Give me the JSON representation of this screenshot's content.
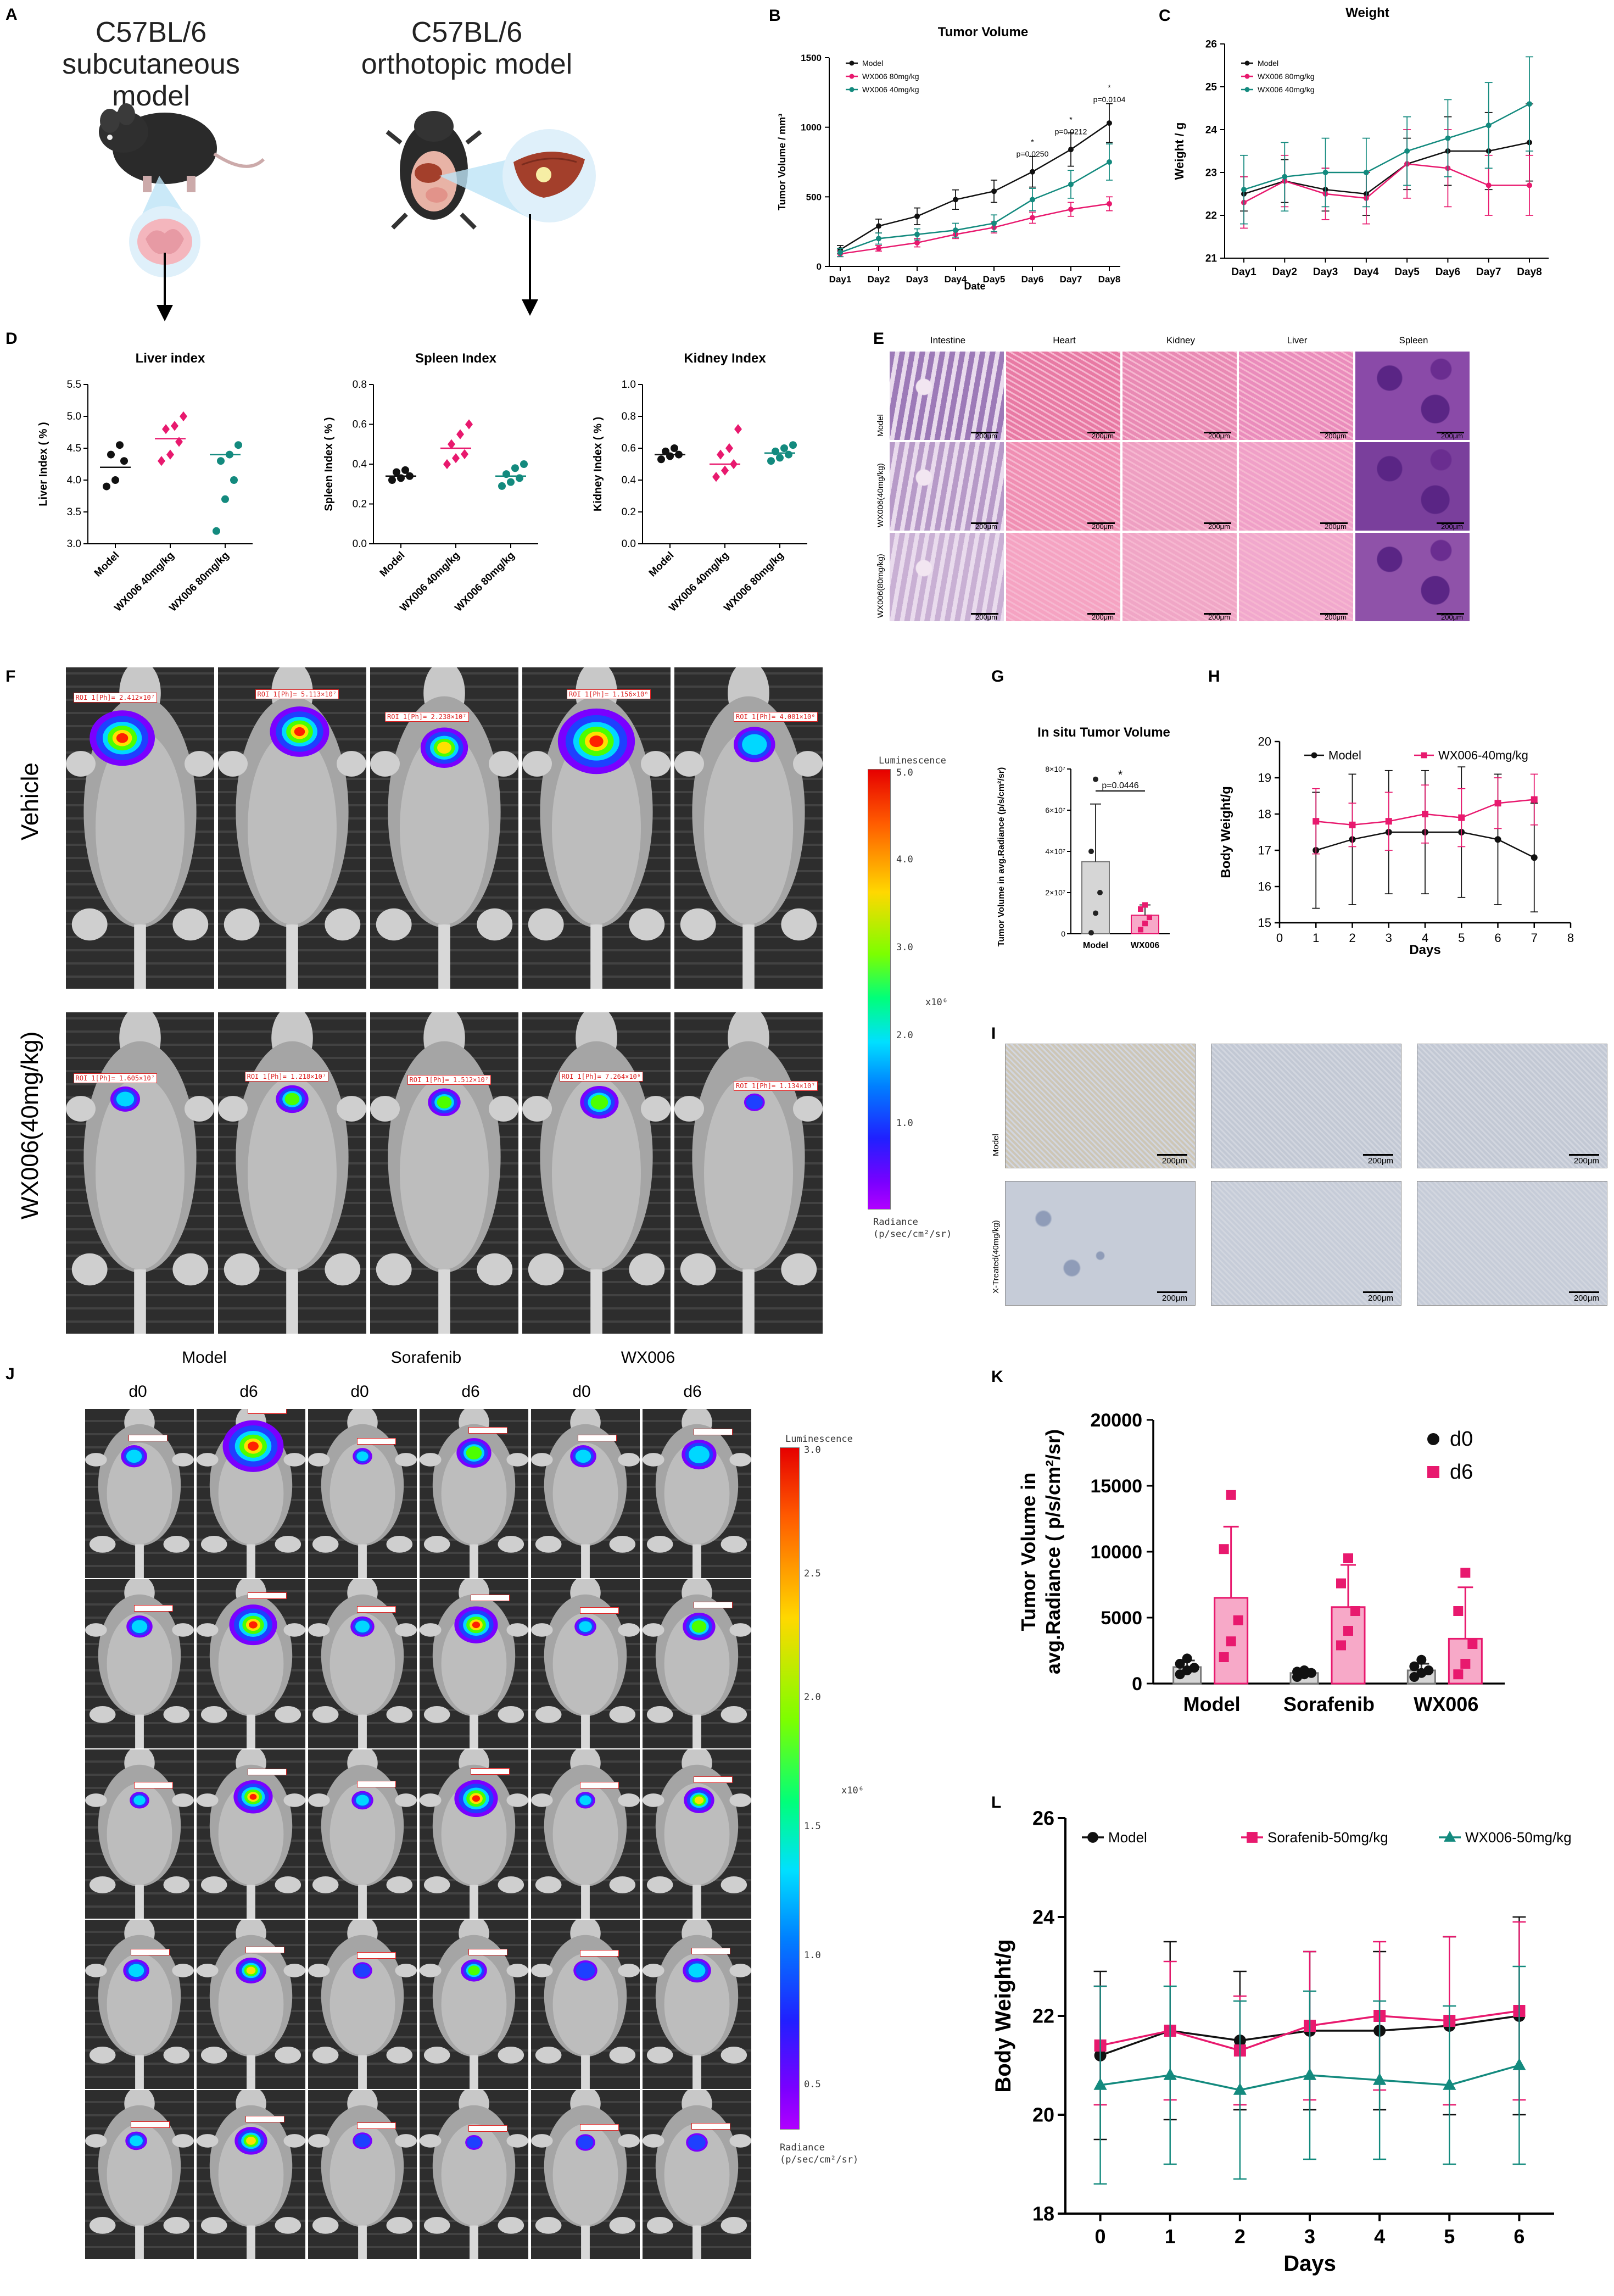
{
  "panels": {
    "A": "A",
    "B": "B",
    "C": "C",
    "D": "D",
    "E": "E",
    "F": "F",
    "G": "G",
    "H": "H",
    "I": "I",
    "J": "J",
    "K": "K",
    "L": "L"
  },
  "panel_a": {
    "left_title_1": "C57BL/6",
    "left_title_2": "subcutaneous model",
    "right_title_1": "C57BL/6",
    "right_title_2": "orthotopic model"
  },
  "colors": {
    "model": "#111111",
    "wx80": "#e8196e",
    "wx40": "#138a7e",
    "pink": "#e8196e",
    "teal": "#138a7e"
  },
  "chart_data": [
    {
      "id": "B",
      "type": "line",
      "title": "Tumor Volume",
      "xlabel": "Date",
      "ylabel": "Tumor Volume / mm³",
      "categories": [
        "Day1",
        "Day2",
        "Day3",
        "Day4",
        "Day5",
        "Day6",
        "Day7",
        "Day8"
      ],
      "ylim": [
        0,
        1500
      ],
      "yticks": [
        0,
        500,
        1000,
        1500
      ],
      "series": [
        {
          "name": "Model",
          "values": [
            120,
            290,
            360,
            480,
            540,
            680,
            840,
            1030
          ],
          "err": [
            30,
            50,
            60,
            70,
            80,
            110,
            120,
            140
          ]
        },
        {
          "name": "WX006 80mg/kg",
          "values": [
            90,
            130,
            170,
            230,
            280,
            350,
            410,
            450
          ],
          "err": [
            20,
            20,
            30,
            30,
            40,
            40,
            50,
            50
          ]
        },
        {
          "name": "WX006 40mg/kg",
          "values": [
            100,
            200,
            230,
            260,
            310,
            480,
            590,
            750
          ],
          "err": [
            30,
            40,
            40,
            50,
            60,
            80,
            100,
            130
          ]
        }
      ],
      "annotations": [
        "p=0.0250",
        "p=0.0212",
        "p=0.0104",
        "*",
        "*",
        "*"
      ]
    },
    {
      "id": "C",
      "type": "line",
      "title": "Weight",
      "xlabel": "",
      "ylabel": "Weight / g",
      "categories": [
        "Day1",
        "Day2",
        "Day3",
        "Day4",
        "Day5",
        "Day6",
        "Day7",
        "Day8"
      ],
      "ylim": [
        21,
        26
      ],
      "yticks": [
        21,
        22,
        23,
        24,
        25,
        26
      ],
      "series": [
        {
          "name": "Model",
          "values": [
            22.5,
            22.8,
            22.6,
            22.5,
            23.2,
            23.5,
            23.5,
            23.7
          ],
          "err": [
            0.4,
            0.5,
            0.5,
            0.5,
            0.6,
            0.8,
            0.9,
            0.9
          ]
        },
        {
          "name": "WX006 80mg/kg",
          "values": [
            22.3,
            22.8,
            22.5,
            22.4,
            23.2,
            23.1,
            22.7,
            22.7
          ],
          "err": [
            0.6,
            0.6,
            0.6,
            0.6,
            0.8,
            0.9,
            0.7,
            0.7
          ]
        },
        {
          "name": "WX006 40mg/kg",
          "values": [
            22.6,
            22.9,
            23.0,
            23.0,
            23.5,
            23.8,
            24.1,
            24.6
          ],
          "err": [
            0.8,
            0.8,
            0.8,
            0.8,
            0.8,
            0.9,
            1.0,
            1.1
          ]
        }
      ]
    },
    {
      "id": "D1",
      "type": "scatter",
      "title": "Liver index",
      "ylabel": "Liver Index ( % )",
      "categories": [
        "Model",
        "WX006 40mg/kg",
        "WX006 80mg/kg"
      ],
      "ylim": [
        3.0,
        5.5
      ],
      "yticks": [
        3.0,
        3.5,
        4.0,
        4.5,
        5.0,
        5.5
      ],
      "points": [
        [
          3.9,
          4.0,
          4.3,
          4.4,
          4.55
        ],
        [
          4.3,
          4.4,
          4.6,
          4.8,
          4.85,
          5.0
        ],
        [
          3.2,
          3.7,
          4.0,
          4.3,
          4.4,
          4.55
        ]
      ],
      "means": [
        4.2,
        4.65,
        4.4
      ]
    },
    {
      "id": "D2",
      "type": "scatter",
      "title": "Spleen Index",
      "ylabel": "Spleen Index ( % )",
      "categories": [
        "Model",
        "WX006 40mg/kg",
        "WX006 80mg/kg"
      ],
      "ylim": [
        0.0,
        0.8
      ],
      "yticks": [
        0.0,
        0.2,
        0.4,
        0.6,
        0.8
      ],
      "points": [
        [
          0.32,
          0.33,
          0.34,
          0.36,
          0.37
        ],
        [
          0.4,
          0.43,
          0.45,
          0.5,
          0.55,
          0.6
        ],
        [
          0.29,
          0.31,
          0.33,
          0.35,
          0.38,
          0.4
        ]
      ],
      "means": [
        0.34,
        0.48,
        0.34
      ]
    },
    {
      "id": "D3",
      "type": "scatter",
      "title": "Kidney Index",
      "ylabel": "Kidney Index ( % )",
      "categories": [
        "Model",
        "WX006 40mg/kg",
        "WX006 80mg/kg"
      ],
      "ylim": [
        0.0,
        1.0
      ],
      "yticks": [
        0.0,
        0.2,
        0.4,
        0.6,
        0.8,
        1.0
      ],
      "points": [
        [
          0.53,
          0.55,
          0.56,
          0.58,
          0.6
        ],
        [
          0.42,
          0.46,
          0.5,
          0.56,
          0.6,
          0.72
        ],
        [
          0.52,
          0.54,
          0.56,
          0.58,
          0.6,
          0.62
        ]
      ],
      "means": [
        0.56,
        0.5,
        0.57
      ]
    },
    {
      "id": "G",
      "type": "bar",
      "title": "In situ Tumor Volume",
      "ylabel": "Tumor Volume in avg.Radiance (p/s/cm²/sr)",
      "categories": [
        "Model",
        "WX006"
      ],
      "values": [
        35000000.0,
        9000000.0
      ],
      "err": [
        28000000.0,
        5000000.0
      ],
      "ylim": [
        0,
        80000000.0
      ],
      "yticks": [
        "0",
        "2×10⁷",
        "4×10⁷",
        "6×10⁷",
        "8×10⁷"
      ],
      "points": [
        [
          500000.0,
          10000000.0,
          20000000.0,
          40000000.0,
          75000000.0
        ],
        [
          2000000.0,
          5000000.0,
          8000000.0,
          12000000.0,
          14000000.0
        ]
      ],
      "annotation_star": "*",
      "annotation_p": "p=0.0446"
    },
    {
      "id": "H",
      "type": "line",
      "title": "",
      "xlabel": "Days",
      "ylabel": "Body Weight/g",
      "x": [
        1,
        2,
        3,
        4,
        5,
        6,
        7
      ],
      "xlim": [
        0,
        8
      ],
      "ylim": [
        15,
        20
      ],
      "xticks": [
        0,
        1,
        2,
        3,
        4,
        5,
        6,
        7,
        8
      ],
      "yticks": [
        15,
        16,
        17,
        18,
        19,
        20
      ],
      "series": [
        {
          "name": "Model",
          "values": [
            17.0,
            17.3,
            17.5,
            17.5,
            17.5,
            17.3,
            16.8
          ],
          "err": [
            1.6,
            1.8,
            1.7,
            1.7,
            1.8,
            1.8,
            1.5
          ]
        },
        {
          "name": "WX006-40mg/kg",
          "values": [
            17.8,
            17.7,
            17.8,
            18.0,
            17.9,
            18.3,
            18.4
          ],
          "err": [
            0.9,
            0.6,
            0.8,
            0.8,
            0.8,
            0.7,
            0.7
          ]
        }
      ]
    },
    {
      "id": "K",
      "type": "bar",
      "ylabel_1": "Tumor Volume in",
      "ylabel_2": "avg.Radiance (  p/s/cm²/sr)",
      "categories": [
        "Model",
        "Sorafenib",
        "WX006"
      ],
      "ylim": [
        0,
        20000
      ],
      "yticks": [
        0,
        5000,
        10000,
        15000,
        20000
      ],
      "series": [
        {
          "name": "d0",
          "values": [
            1250,
            800,
            1000
          ],
          "err": [
            500,
            300,
            500
          ],
          "points": [
            [
              700,
              1000,
              1200,
              1500,
              1900
            ],
            [
              500,
              700,
              800,
              900,
              1000
            ],
            [
              500,
              800,
              1000,
              1300,
              1800
            ]
          ]
        },
        {
          "name": "d6",
          "values": [
            6500,
            5800,
            3400
          ],
          "err": [
            5400,
            3200,
            3900
          ],
          "points": [
            [
              2000,
              3200,
              4800,
              10200,
              14300
            ],
            [
              2900,
              4000,
              5500,
              7600,
              9500
            ],
            [
              700,
              1500,
              3000,
              5500,
              8400
            ]
          ]
        }
      ]
    },
    {
      "id": "L",
      "type": "line",
      "xlabel": "Days",
      "ylabel": "Body Weight/g",
      "x": [
        0,
        1,
        2,
        3,
        4,
        5,
        6
      ],
      "xlim": [
        -0.5,
        6.5
      ],
      "ylim": [
        18,
        26
      ],
      "xticks": [
        0,
        1,
        2,
        3,
        4,
        5,
        6
      ],
      "yticks": [
        18,
        20,
        22,
        24,
        26
      ],
      "series": [
        {
          "name": "Model",
          "values": [
            21.2,
            21.7,
            21.5,
            21.7,
            21.7,
            21.8,
            22.0
          ],
          "err": [
            1.7,
            1.8,
            1.4,
            1.6,
            1.6,
            1.8,
            2.0
          ]
        },
        {
          "name": "Sorafenib-50mg/kg",
          "values": [
            21.4,
            21.7,
            21.3,
            21.8,
            22.0,
            21.9,
            22.1
          ],
          "err": [
            1.2,
            1.4,
            1.1,
            1.5,
            1.5,
            1.7,
            1.8
          ]
        },
        {
          "name": "WX006-50mg/kg",
          "values": [
            20.6,
            20.8,
            20.5,
            20.8,
            20.7,
            20.6,
            21.0
          ],
          "err": [
            2.0,
            1.8,
            1.8,
            1.7,
            1.6,
            1.6,
            2.0
          ]
        }
      ]
    }
  ],
  "panel_e": {
    "cols": [
      "Intestine",
      "Heart",
      "Kidney",
      "Liver",
      "Spleen"
    ],
    "rows": [
      "Model",
      "WX006(40mg/kg)",
      "WX006(80mg/kg)"
    ],
    "scale": "200μm"
  },
  "panel_f": {
    "rows": [
      "Vehicle",
      "WX006(40mg/kg)"
    ],
    "roi": [
      [
        "ROI 1[Ph]= 2.412×10⁷",
        "ROI 1[Ph]= 5.113×10⁷",
        "ROI 1[Ph]= 2.238×10⁷",
        "ROI 1[Ph]= 1.156×10⁸",
        "ROI 1[Ph]= 4.081×10⁶"
      ],
      [
        "ROI 1[Ph]= 1.605×10⁷",
        "ROI 1[Ph]= 1.218×10⁷",
        "ROI 1[Ph]= 1.512×10⁷",
        "ROI 1[Ph]= 7.264×10⁶",
        "ROI 1[Ph]= 1.134×10⁷"
      ]
    ],
    "colorbar_title": "Luminescence",
    "colorbar_ticks": [
      "5.0",
      "4.0",
      "3.0",
      "2.0",
      "1.0"
    ],
    "colorbar_unit": "x10⁶",
    "colorbar_bottom_1": "Radiance",
    "colorbar_bottom_2": "(p/sec/cm²/sr)"
  },
  "panel_i": {
    "rows": [
      "Model",
      "X-Treated(40mg/kg)"
    ],
    "scale": "200μm"
  },
  "panel_j": {
    "groups": [
      "Model",
      "Sorafenib",
      "WX006"
    ],
    "days": [
      "d0",
      "d6",
      "d0",
      "d6",
      "d0",
      "d6"
    ],
    "colorbar_title": "Luminescence",
    "colorbar_ticks": [
      "3.0",
      "2.5",
      "2.0",
      "1.5",
      "1.0",
      "0.5"
    ],
    "colorbar_unit": "x10⁶",
    "colorbar_bottom_1": "Radiance",
    "colorbar_bottom_2": "(p/sec/cm²/sr)"
  }
}
